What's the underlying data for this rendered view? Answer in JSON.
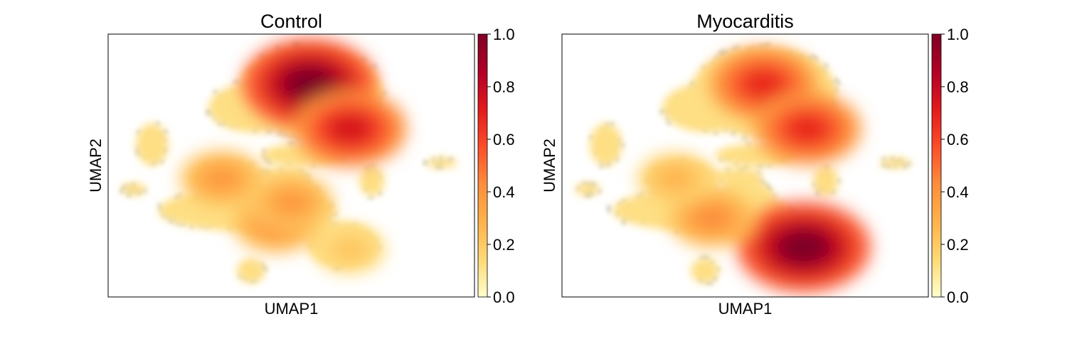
{
  "chart_data": [
    {
      "type": "scatter",
      "title": "Control",
      "xlabel": "UMAP1",
      "ylabel": "UMAP2",
      "colorbar": {
        "range": [
          0.0,
          1.0
        ],
        "ticks": [
          "0.0",
          "0.2",
          "0.4",
          "0.6",
          "0.8",
          "1.0"
        ],
        "colormap": [
          "#ffffcc",
          "#fed976",
          "#feb24c",
          "#fd8d3c",
          "#fc4e2a",
          "#e31a1c",
          "#b10026",
          "#800026"
        ]
      },
      "background_color": "#cccccc",
      "density_hotspots": [
        {
          "x": 0.55,
          "y": 0.81,
          "value": 1.0
        },
        {
          "x": 0.66,
          "y": 0.64,
          "value": 0.75
        },
        {
          "x": 0.46,
          "y": 0.28,
          "value": 0.42
        },
        {
          "x": 0.31,
          "y": 0.45,
          "value": 0.38
        },
        {
          "x": 0.5,
          "y": 0.36,
          "value": 0.38
        },
        {
          "x": 0.66,
          "y": 0.18,
          "value": 0.22
        }
      ]
    },
    {
      "type": "scatter",
      "title": "Myocarditis",
      "xlabel": "UMAP1",
      "ylabel": "UMAP2",
      "colorbar": {
        "range": [
          0.0,
          1.0
        ],
        "ticks": [
          "0.0",
          "0.2",
          "0.4",
          "0.6",
          "0.8",
          "1.0"
        ],
        "colormap": [
          "#ffffcc",
          "#fed976",
          "#feb24c",
          "#fd8d3c",
          "#fc4e2a",
          "#e31a1c",
          "#b10026",
          "#800026"
        ]
      },
      "background_color": "#cccccc",
      "density_hotspots": [
        {
          "x": 0.55,
          "y": 0.81,
          "value": 0.68
        },
        {
          "x": 0.67,
          "y": 0.64,
          "value": 0.68
        },
        {
          "x": 0.66,
          "y": 0.19,
          "value": 1.0
        },
        {
          "x": 0.41,
          "y": 0.3,
          "value": 0.42
        },
        {
          "x": 0.31,
          "y": 0.45,
          "value": 0.28
        }
      ]
    }
  ]
}
